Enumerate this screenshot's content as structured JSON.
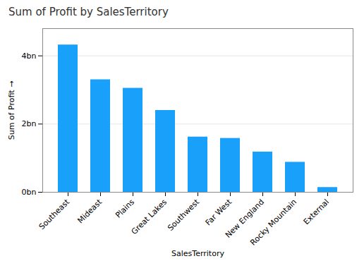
{
  "chart_data": {
    "type": "bar",
    "title": "Sum of Profit by SalesTerritory",
    "xlabel": "SalesTerritory",
    "ylabel": "Sum of Profit",
    "categories": [
      "Southeast",
      "Mideast",
      "Plains",
      "Great Lakes",
      "Southwest",
      "Far West",
      "New England",
      "Rocky Mountain",
      "External"
    ],
    "values": [
      4.32,
      3.3,
      3.05,
      2.4,
      1.62,
      1.58,
      1.18,
      0.88,
      0.14
    ],
    "color": "#18a0fb",
    "ylim": [
      0,
      4.8
    ],
    "yticks": [
      {
        "value": 0,
        "label": "0bn"
      },
      {
        "value": 2,
        "label": "2bn"
      },
      {
        "value": 4,
        "label": "4bn"
      }
    ],
    "grid": true
  }
}
